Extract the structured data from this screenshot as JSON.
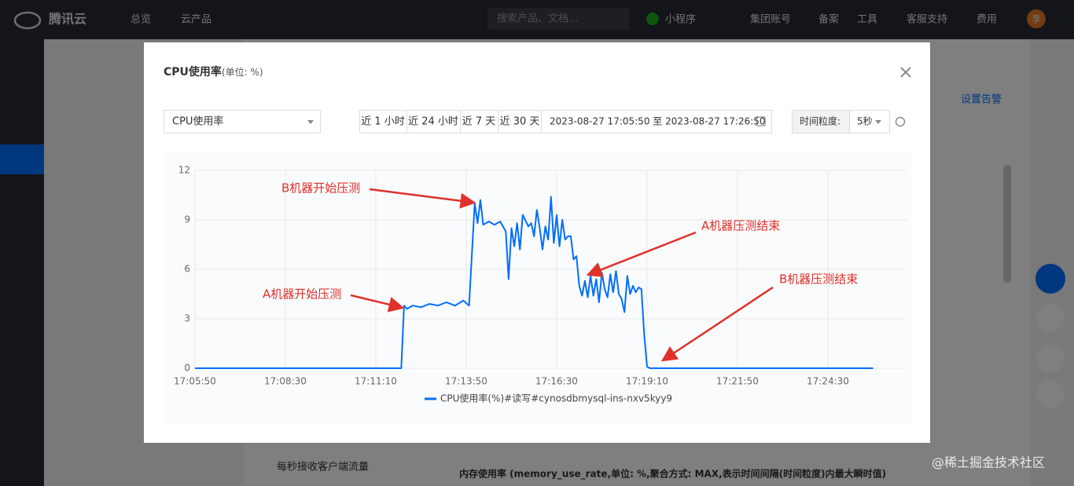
{
  "navbar": {
    "brand": "腾讯云",
    "items": [
      "总览",
      "云产品"
    ],
    "search_placeholder": "搜索产品、文档...",
    "right_items": [
      "小程序",
      "集团账号",
      "备案",
      "工具",
      "客服支持",
      "费用"
    ],
    "avatar": "李"
  },
  "background": {
    "link": "设置告警",
    "row": "每秒接收客户端流量",
    "caption": "内存使用率 (memory_use_rate,单位: %,聚合方式: MAX,表示时间间隔(时间粒度)内最大瞬时值)",
    "watermark": "@稀土掘金技术社区"
  },
  "modal": {
    "title": "CPU使用率",
    "title_unit": "(单位: %)",
    "metric_select": "CPU使用率",
    "time_ranges": [
      "近 1 小时",
      "近 24 小时",
      "近 7 天",
      "近 30 天"
    ],
    "date_range": "2023-08-27 17:05:50 至 2023-08-27 17:26:50",
    "granularity_label": "时间粒度:",
    "granularity": "5秒"
  },
  "chart_data": {
    "type": "line",
    "x": [
      "17:05:50",
      "17:11:55",
      "17:12:00",
      "17:12:05",
      "17:12:15",
      "17:12:30",
      "17:12:45",
      "17:13:00",
      "17:13:15",
      "17:13:30",
      "17:13:45",
      "17:13:55",
      "17:14:05",
      "17:14:10",
      "17:14:15",
      "17:14:20",
      "17:14:30",
      "17:14:40",
      "17:14:50",
      "17:15:00",
      "17:15:05",
      "17:15:10",
      "17:15:15",
      "17:15:20",
      "17:15:25",
      "17:15:30",
      "17:15:40",
      "17:15:45",
      "17:15:50",
      "17:15:55",
      "17:16:00",
      "17:16:05",
      "17:16:10",
      "17:16:15",
      "17:16:20",
      "17:16:25",
      "17:16:30",
      "17:16:35",
      "17:16:40",
      "17:16:45",
      "17:16:50",
      "17:16:55",
      "17:17:00",
      "17:17:05",
      "17:17:10",
      "17:17:15",
      "17:17:20",
      "17:17:25",
      "17:17:30",
      "17:17:35",
      "17:17:40",
      "17:17:45",
      "17:17:50",
      "17:17:55",
      "17:18:00",
      "17:18:05",
      "17:18:10",
      "17:18:15",
      "17:18:20",
      "17:18:25",
      "17:18:30",
      "17:18:35",
      "17:18:40",
      "17:18:45",
      "17:18:50",
      "17:18:55",
      "17:19:00",
      "17:19:05",
      "17:19:10",
      "17:19:15",
      "17:25:50"
    ],
    "series": [
      {
        "name": "CPU使用率(%)#读写#cynosdbmysql-ins-nxv5kyy9",
        "color": "#006eff",
        "values": [
          0,
          0,
          3.8,
          3.6,
          3.8,
          3.7,
          3.9,
          3.8,
          4.0,
          3.8,
          4.1,
          3.8,
          10.0,
          8.8,
          10.2,
          8.7,
          8.9,
          8.7,
          8.9,
          8.3,
          5.4,
          8.5,
          7.4,
          8.8,
          7.2,
          9.3,
          8.6,
          8.8,
          8.0,
          9.6,
          8.5,
          7.2,
          8.6,
          7.8,
          10.4,
          7.6,
          9.3,
          7.4,
          9.0,
          7.8,
          8.0,
          8.0,
          6.6,
          6.8,
          5.0,
          4.4,
          5.3,
          4.3,
          5.6,
          4.4,
          5.4,
          4.0,
          5.8,
          4.8,
          4.3,
          5.7,
          4.6,
          5.9,
          4.5,
          4.2,
          3.4,
          5.6,
          4.5,
          5.0,
          4.6,
          4.9,
          4.8,
          2.0,
          0.1,
          0,
          0
        ]
      }
    ],
    "xlim": [
      "17:05:50",
      "17:26:50"
    ],
    "xticks": [
      "17:05:50",
      "17:08:30",
      "17:11:10",
      "17:13:50",
      "17:16:30",
      "17:19:10",
      "17:21:50",
      "17:24:30"
    ],
    "ylim": [
      0,
      12
    ],
    "yticks": [
      0,
      3,
      6,
      9,
      12
    ],
    "grid": true,
    "annotations": [
      "B机器开始压测",
      "A机器开始压测",
      "A机器压测结束",
      "B机器压测结束"
    ]
  }
}
